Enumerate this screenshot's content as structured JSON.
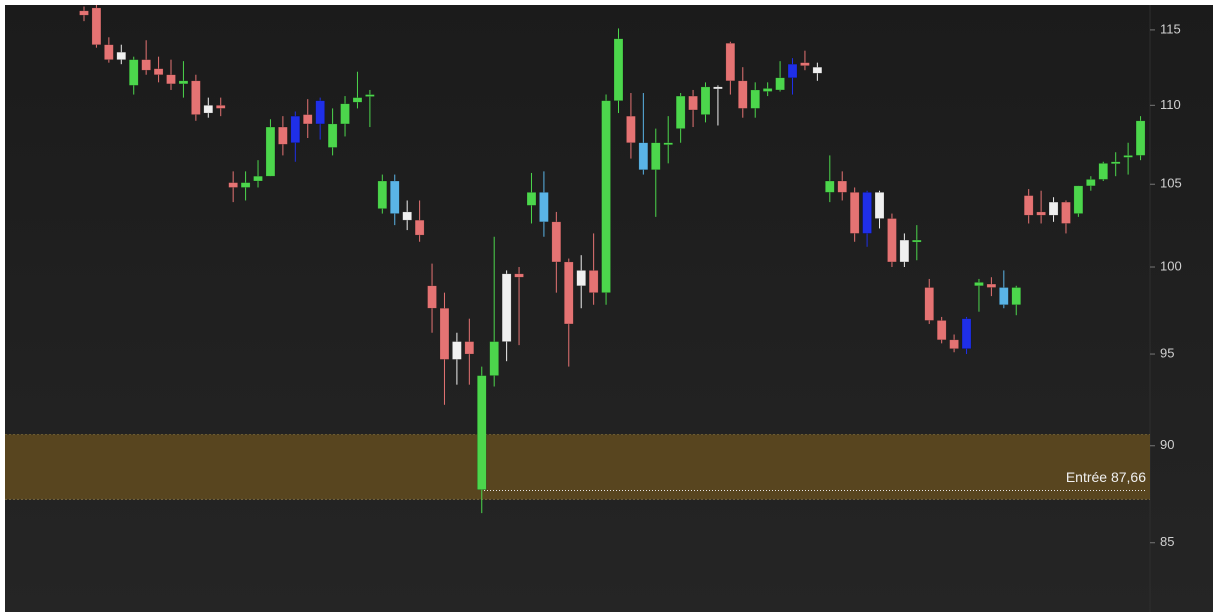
{
  "chart_data": {
    "type": "candlestick",
    "log_scale": true,
    "ylim": [
      81.6,
      116.7
    ],
    "yticks": [
      85,
      90,
      95,
      100,
      105,
      110,
      115
    ],
    "zone": [
      87.2,
      90.6
    ],
    "zone_color": "#5c4820",
    "annotation": {
      "text": "Entrée 87,66",
      "value": 87.66
    },
    "open": [
      116.3,
      116.5,
      114,
      113,
      111.3,
      113,
      112.4,
      112,
      111.4,
      111.6,
      109.5,
      110,
      105.1,
      104.8,
      105.2,
      105.5,
      108.6,
      107.6,
      109.4,
      108.8,
      107.3,
      108.8,
      110.2,
      110.6,
      103.5,
      105.2,
      103.3,
      102.8,
      98.9,
      97.6,
      94.7,
      95.7,
      87.7,
      93.8,
      95.7,
      99.6,
      103.7,
      104.5,
      102.7,
      100.3,
      98.9,
      99.8,
      98.5,
      110.3,
      109.3,
      107.6,
      105.9,
      107.5,
      108.5,
      110.6,
      109.4,
      111.1,
      114.1,
      111.6,
      109.8,
      110.9,
      111,
      111.8,
      112.8,
      112.5,
      104.5,
      105.2,
      104.5,
      102,
      104.5,
      102.9,
      100.3,
      101.5,
      98.8,
      96.9,
      95.8,
      95.3,
      98.9,
      99,
      98.8,
      97.8,
      104.3,
      103.3,
      103.1,
      103.9,
      103.2,
      104.9,
      105.3,
      106.3,
      106.7,
      106.8
    ],
    "high": [
      116.6,
      116.7,
      114.5,
      114,
      113.2,
      114.3,
      113.2,
      113,
      112.9,
      112,
      110.5,
      110.5,
      105.8,
      105.8,
      106.5,
      109.1,
      109.3,
      109.6,
      110.4,
      110.5,
      109.8,
      110.6,
      112.2,
      111,
      105.6,
      105.6,
      104,
      104,
      100.2,
      98.5,
      96.2,
      97,
      94.3,
      101.8,
      99.8,
      100,
      105.7,
      105.8,
      103.3,
      100.5,
      100.7,
      102,
      110.7,
      115.1,
      110.8,
      110.8,
      108.5,
      109.3,
      110.8,
      111,
      111.5,
      111.3,
      114.2,
      112.5,
      111.5,
      111.5,
      112.9,
      113.1,
      113.6,
      112.8,
      106.8,
      105.8,
      104.8,
      104.6,
      104.6,
      103.2,
      102,
      102.5,
      99.3,
      97.1,
      96.1,
      97.1,
      99.3,
      99.4,
      99.8,
      98.9,
      104.7,
      104.6,
      104.2,
      104,
      104.9,
      105.5,
      106.4,
      107,
      107.6,
      109.3
    ],
    "low": [
      115.6,
      113.8,
      112.8,
      112.7,
      110.7,
      112,
      111.5,
      111,
      110.5,
      109,
      109.2,
      109.3,
      103.9,
      104,
      104.8,
      105.5,
      106.8,
      106.4,
      107.9,
      107.8,
      106.8,
      108,
      109.8,
      108.6,
      103.2,
      102.5,
      102.2,
      101.5,
      96.2,
      92.2,
      93.3,
      93.3,
      86.5,
      93.2,
      94.6,
      95.5,
      102.6,
      101.8,
      98.5,
      94.3,
      97.6,
      97.8,
      97.8,
      109.5,
      106.6,
      105.6,
      103,
      106.3,
      107.6,
      108.6,
      108.9,
      108.7,
      110.7,
      109.2,
      109.2,
      110.6,
      110.9,
      110.7,
      112.3,
      111.6,
      103.9,
      104,
      101.5,
      101.2,
      102.3,
      100,
      100,
      100.4,
      96.7,
      95.6,
      95.1,
      95,
      97.4,
      98.3,
      97.6,
      97.2,
      102.6,
      102.6,
      102.7,
      102,
      103,
      104.6,
      105.2,
      105.5,
      105.6,
      106.5
    ],
    "close": [
      116,
      114,
      113,
      113.5,
      113,
      112.3,
      112,
      111.4,
      111.6,
      109.4,
      110,
      109.8,
      104.8,
      105.1,
      105.5,
      108.6,
      107.5,
      109.3,
      108.8,
      110.3,
      108.8,
      110.1,
      110.5,
      110.7,
      105.2,
      103.2,
      102.8,
      101.9,
      97.6,
      94.7,
      95.7,
      95,
      93.8,
      95.7,
      99.6,
      99.4,
      104.5,
      102.7,
      100.3,
      96.7,
      99.8,
      98.5,
      110.3,
      114.4,
      107.6,
      105.9,
      107.6,
      107.6,
      110.6,
      109.7,
      111.2,
      111.2,
      111.6,
      109.8,
      111,
      111.1,
      111.8,
      112.7,
      112.6,
      112.1,
      105.2,
      104.5,
      102,
      104.5,
      102.9,
      100.3,
      101.6,
      101.6,
      96.9,
      95.8,
      95.3,
      97,
      99.1,
      98.8,
      97.8,
      98.8,
      103.1,
      103.1,
      103.9,
      102.6,
      104.9,
      105.3,
      106.3,
      106.4,
      106.8,
      109
    ],
    "colors": [
      "#e57373",
      "#e57373",
      "#e57373",
      "#f0f0f0",
      "#4cd64c",
      "#e57373",
      "#e57373",
      "#e57373",
      "#4cd64c",
      "#e57373",
      "#f0f0f0",
      "#e57373",
      "#e57373",
      "#4cd64c",
      "#4cd64c",
      "#4cd64c",
      "#e57373",
      "#1f2fe8",
      "#e57373",
      "#1f2fe8",
      "#4cd64c",
      "#4cd64c",
      "#4cd64c",
      "#4cd64c",
      "#4cd64c",
      "#5ab4e6",
      "#f0f0f0",
      "#e57373",
      "#e57373",
      "#e57373",
      "#f0f0f0",
      "#e57373",
      "#4cd64c",
      "#4cd64c",
      "#f0f0f0",
      "#e57373",
      "#4cd64c",
      "#5ab4e6",
      "#e57373",
      "#e57373",
      "#f0f0f0",
      "#e57373",
      "#4cd64c",
      "#4cd64c",
      "#e57373",
      "#5ab4e6",
      "#4cd64c",
      "#4cd64c",
      "#4cd64c",
      "#e57373",
      "#4cd64c",
      "#f0f0f0",
      "#e57373",
      "#e57373",
      "#4cd64c",
      "#4cd64c",
      "#4cd64c",
      "#1f2fe8",
      "#e57373",
      "#f0f0f0",
      "#4cd64c",
      "#e57373",
      "#e57373",
      "#1f2fe8",
      "#f0f0f0",
      "#e57373",
      "#f0f0f0",
      "#4cd64c",
      "#e57373",
      "#e57373",
      "#e57373",
      "#1f2fe8",
      "#4cd64c",
      "#e57373",
      "#5ab4e6",
      "#4cd64c",
      "#e57373",
      "#e57373",
      "#f0f0f0",
      "#e57373",
      "#4cd64c",
      "#4cd64c",
      "#4cd64c",
      "#4cd64c",
      "#4cd64c",
      "#4cd64c"
    ]
  }
}
